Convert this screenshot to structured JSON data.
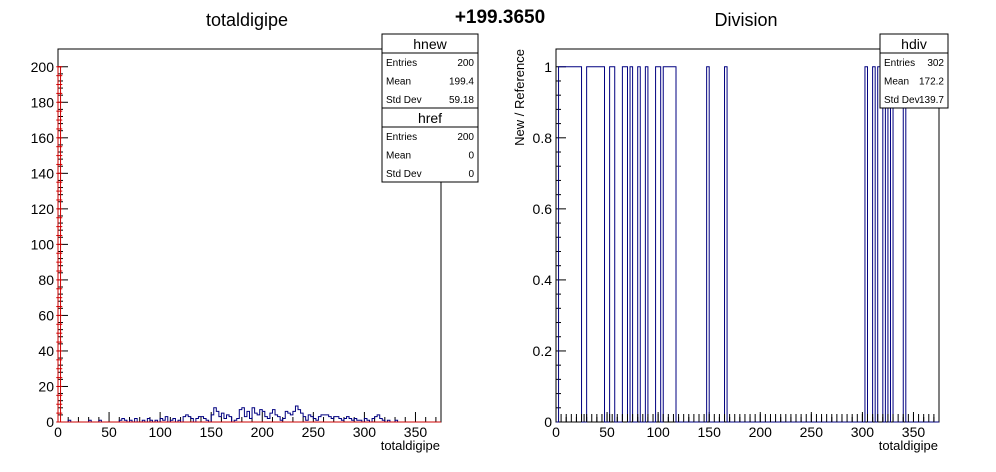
{
  "page": {
    "center_label": "+199.3650"
  },
  "colors": {
    "new_hist": "#000080",
    "ref_hist": "#cc0000",
    "axis": "#000000",
    "frame": "#000000"
  },
  "chart_data": [
    {
      "type": "histogram",
      "title": "totaldigipe",
      "xlabel": "totaldigipe",
      "ylabel": "",
      "xlim": [
        0,
        375
      ],
      "ylim": [
        0,
        210
      ],
      "xticks": [
        0,
        50,
        100,
        150,
        200,
        250,
        300,
        350
      ],
      "yticks": [
        0,
        20,
        40,
        60,
        80,
        100,
        120,
        140,
        160,
        180,
        200
      ],
      "bin_width": 2.5,
      "series": [
        {
          "name": "hnew",
          "style": "step",
          "bins": [
            [
              10,
              1
            ],
            [
              30,
              1
            ],
            [
              40,
              1
            ],
            [
              60,
              1
            ],
            [
              62.5,
              2
            ],
            [
              65,
              1
            ],
            [
              70,
              1
            ],
            [
              75,
              2
            ],
            [
              82.5,
              1
            ],
            [
              87.5,
              2
            ],
            [
              90,
              1
            ],
            [
              95,
              1
            ],
            [
              100,
              2
            ],
            [
              102.5,
              1
            ],
            [
              105,
              3
            ],
            [
              110,
              1
            ],
            [
              112.5,
              2
            ],
            [
              117.5,
              1
            ],
            [
              122.5,
              3
            ],
            [
              125,
              4
            ],
            [
              127.5,
              3
            ],
            [
              130,
              2
            ],
            [
              135,
              2
            ],
            [
              137.5,
              3
            ],
            [
              140,
              3
            ],
            [
              142.5,
              2
            ],
            [
              145,
              1
            ],
            [
              150,
              4
            ],
            [
              152.5,
              8
            ],
            [
              155,
              6
            ],
            [
              157.5,
              3
            ],
            [
              160,
              5
            ],
            [
              162.5,
              2
            ],
            [
              165,
              4
            ],
            [
              167.5,
              3
            ],
            [
              172.5,
              1
            ],
            [
              175,
              2
            ],
            [
              177.5,
              7
            ],
            [
              180,
              8
            ],
            [
              182.5,
              3
            ],
            [
              185,
              6
            ],
            [
              187.5,
              2
            ],
            [
              190,
              8
            ],
            [
              192.5,
              5
            ],
            [
              195,
              4
            ],
            [
              197.5,
              7
            ],
            [
              200,
              6
            ],
            [
              202.5,
              3
            ],
            [
              205,
              2
            ],
            [
              207.5,
              5
            ],
            [
              210,
              7
            ],
            [
              212.5,
              4
            ],
            [
              215,
              3
            ],
            [
              217.5,
              1
            ],
            [
              220,
              2
            ],
            [
              222.5,
              6
            ],
            [
              225,
              5
            ],
            [
              227.5,
              4
            ],
            [
              230,
              6
            ],
            [
              232.5,
              9
            ],
            [
              235,
              7
            ],
            [
              237.5,
              5
            ],
            [
              240,
              3
            ],
            [
              242.5,
              1
            ],
            [
              245,
              4
            ],
            [
              247.5,
              3
            ],
            [
              250,
              2
            ],
            [
              252.5,
              1
            ],
            [
              255,
              3
            ],
            [
              257.5,
              4
            ],
            [
              260,
              4
            ],
            [
              262.5,
              4
            ],
            [
              265,
              3
            ],
            [
              267.5,
              2
            ],
            [
              270,
              3
            ],
            [
              272.5,
              3
            ],
            [
              275,
              2
            ],
            [
              277.5,
              1
            ],
            [
              280,
              2
            ],
            [
              282.5,
              3
            ],
            [
              285,
              2
            ],
            [
              287.5,
              1
            ],
            [
              290,
              2
            ],
            [
              292.5,
              1
            ],
            [
              295,
              1
            ],
            [
              300,
              2
            ],
            [
              302.5,
              1
            ],
            [
              307.5,
              2
            ],
            [
              310,
              3
            ],
            [
              312.5,
              4
            ],
            [
              315,
              2
            ],
            [
              317.5,
              1
            ],
            [
              322.5,
              1
            ],
            [
              330,
              1
            ]
          ]
        },
        {
          "name": "href",
          "style": "step",
          "bins": [
            [
              0,
              200
            ]
          ]
        }
      ],
      "stats": [
        {
          "name": "hnew",
          "entries": "200",
          "mean": "199.4",
          "std_dev": "59.18"
        },
        {
          "name": "href",
          "entries": "200",
          "mean": "0",
          "std_dev": "0"
        }
      ],
      "stat_labels": {
        "entries": "Entries",
        "mean": "Mean",
        "std_dev": "Std Dev"
      }
    },
    {
      "type": "histogram",
      "title": "Division",
      "xlabel": "totaldigipe",
      "ylabel": "New / Reference",
      "xlim": [
        0,
        375
      ],
      "ylim": [
        0,
        1.05
      ],
      "xticks": [
        0,
        50,
        100,
        150,
        200,
        250,
        300,
        350
      ],
      "yticks": [
        0,
        0.2,
        0.4,
        0.6,
        0.8,
        1
      ],
      "bin_width": 2.5,
      "series": [
        {
          "name": "hdiv",
          "style": "step",
          "ranges": [
            [
              2.5,
              25
            ],
            [
              30,
              47.5
            ],
            [
              52.5,
              57.5
            ],
            [
              65,
              70
            ],
            [
              72.5,
              75
            ],
            [
              80,
              82.5
            ],
            [
              87.5,
              90
            ],
            [
              97.5,
              102.5
            ],
            [
              105,
              117.5
            ],
            [
              147.5,
              150
            ],
            [
              165,
              167.5
            ],
            [
              302.5,
              305
            ],
            [
              310,
              312.5
            ],
            [
              315,
              320
            ],
            [
              322.5,
              325
            ],
            [
              327.5,
              330
            ],
            [
              340,
              342.5
            ]
          ],
          "errorbars_x": [
            0,
            5,
            10,
            15,
            20,
            25,
            27.5,
            30,
            35,
            40,
            45,
            50,
            52.5,
            55,
            60,
            65,
            70,
            75,
            80,
            85,
            90,
            95,
            100,
            105,
            110,
            115,
            120,
            125,
            130,
            135,
            140,
            145,
            150,
            155,
            160,
            165,
            170,
            175,
            180,
            185,
            190,
            195,
            200,
            205,
            210,
            215,
            220,
            225,
            230,
            235,
            240,
            245,
            250,
            255,
            260,
            265,
            270,
            275,
            280,
            285,
            290,
            295,
            300,
            305,
            310,
            315,
            320,
            325,
            330,
            335,
            340,
            345,
            350,
            355,
            360,
            365,
            370
          ]
        }
      ],
      "stats": [
        {
          "name": "hdiv",
          "entries": "302",
          "mean": "172.2",
          "std_dev": "139.7"
        }
      ],
      "stat_labels": {
        "entries": "Entries",
        "mean": "Mean",
        "std_dev": "Std Dev"
      }
    }
  ]
}
